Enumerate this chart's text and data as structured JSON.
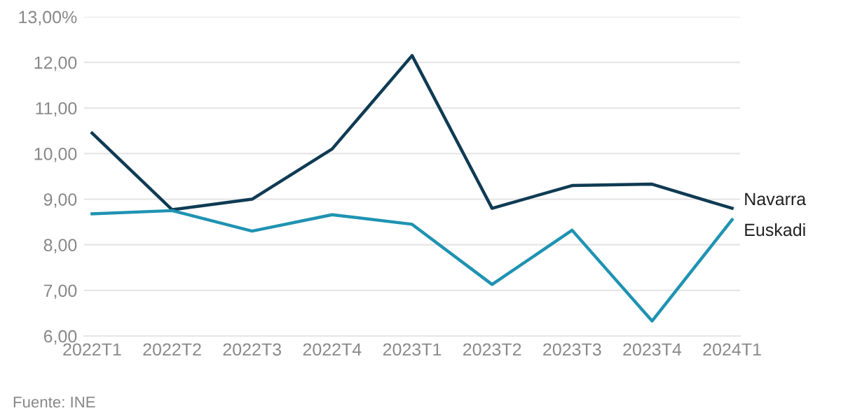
{
  "chart_data": {
    "type": "line",
    "categories": [
      "2022T1",
      "2022T2",
      "2022T3",
      "2022T4",
      "2023T1",
      "2023T2",
      "2023T3",
      "2023T4",
      "2024T1"
    ],
    "series": [
      {
        "name": "Navarra",
        "color": "#0f3b53",
        "values": [
          10.45,
          8.77,
          9.0,
          10.1,
          12.15,
          8.8,
          9.3,
          9.33,
          8.8
        ]
      },
      {
        "name": "Euskadi",
        "color": "#1f93b2",
        "values": [
          8.68,
          8.75,
          8.3,
          8.66,
          8.45,
          7.13,
          8.32,
          6.33,
          8.55
        ]
      }
    ],
    "ylim": [
      6,
      13
    ],
    "yticks": [
      {
        "value": 6,
        "label": "6,00"
      },
      {
        "value": 7,
        "label": "7,00"
      },
      {
        "value": 8,
        "label": "8,00"
      },
      {
        "value": 9,
        "label": "9,00"
      },
      {
        "value": 10,
        "label": "10,00"
      },
      {
        "value": 11,
        "label": "11,00"
      },
      {
        "value": 12,
        "label": "12,00"
      },
      {
        "value": 13,
        "label": "13,00%"
      }
    ],
    "grid": "y",
    "marker": "none",
    "line_style": "solid",
    "annotations": [
      "Fuente: INE"
    ]
  }
}
